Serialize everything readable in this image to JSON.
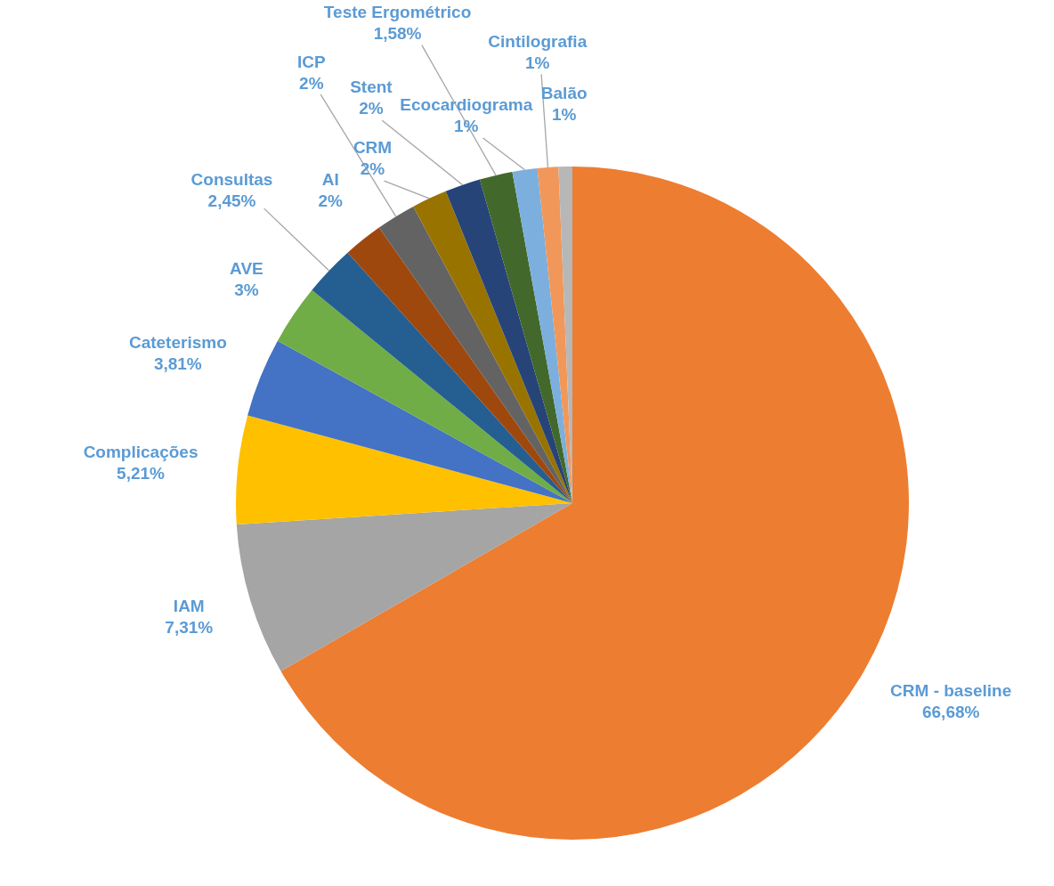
{
  "chart_data": {
    "type": "pie",
    "categories": [
      "CRM - baseline",
      "IAM",
      "Complicações",
      "Cateterismo",
      "AVE",
      "Consultas",
      "AI",
      "ICP",
      "CRM",
      "Stent",
      "Teste Ergométrico",
      "Ecocardiograma",
      "Cintilografia",
      "Balão"
    ],
    "values": [
      66.68,
      7.31,
      5.21,
      3.81,
      2.9,
      2.45,
      1.9,
      1.9,
      1.7,
      1.7,
      1.58,
      1.2,
      1.0,
      0.66
    ],
    "colors": [
      "#ed7d31",
      "#a5a5a5",
      "#ffc000",
      "#4472c4",
      "#70ad47",
      "#255e91",
      "#9e480e",
      "#636363",
      "#997300",
      "#264478",
      "#43682b",
      "#7cafdd",
      "#f1975a",
      "#b7b7b7"
    ],
    "value_labels": [
      "66,68%",
      "7,31%",
      "5,21%",
      "3,81%",
      "3%",
      "2,45%",
      "2%",
      "2%",
      "2%",
      "2%",
      "1,58%",
      "1%",
      "1%",
      "1%"
    ]
  }
}
